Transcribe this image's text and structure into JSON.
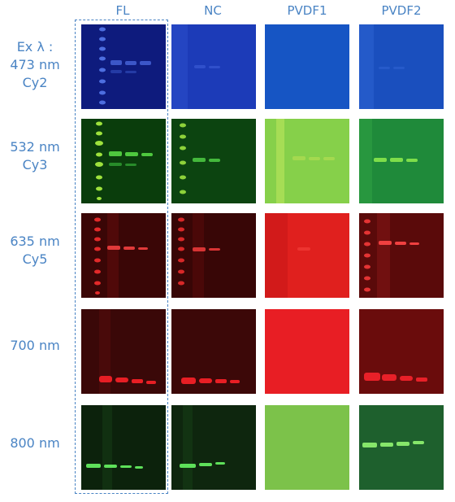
{
  "columns": [
    "FL",
    "NC",
    "PVDF1",
    "PVDF2"
  ],
  "rows": [
    {
      "label_lines": [
        "Ex λ  :",
        "473 nm",
        "Cy2"
      ]
    },
    {
      "label_lines": [
        "532 nm",
        "Cy3"
      ]
    },
    {
      "label_lines": [
        "635 nm",
        "Cy5"
      ]
    },
    {
      "label_lines": [
        "700 nm"
      ]
    },
    {
      "label_lines": [
        "800 nm"
      ]
    }
  ],
  "colors": {
    "label_text": "#4a84c4",
    "cy2_bg": "#11208a",
    "cy2_nc_bg": "#1c3bb8",
    "cy2_pvdf_bg": "#1655c4",
    "cy3_bg": "#0a3d0c",
    "cy3_pvdf1_bg": "#86d04a",
    "cy3_pvdf2_bg": "#1f8a3a",
    "cy5_bg": "#3a0606",
    "cy5_pvdf1_bg": "#e0201e",
    "cy5_pvdf2_bg": "#5a0a0a",
    "ir700_bg": "#3a0808",
    "ir700_pvdf1_bg": "#e81e24",
    "ir700_pvdf2_bg": "#6a0c0c",
    "ir800_bg": "#0c220c",
    "ir800_pvdf1_bg": "#7cc24a",
    "ir800_pvdf2_bg": "#1c5a2a"
  }
}
